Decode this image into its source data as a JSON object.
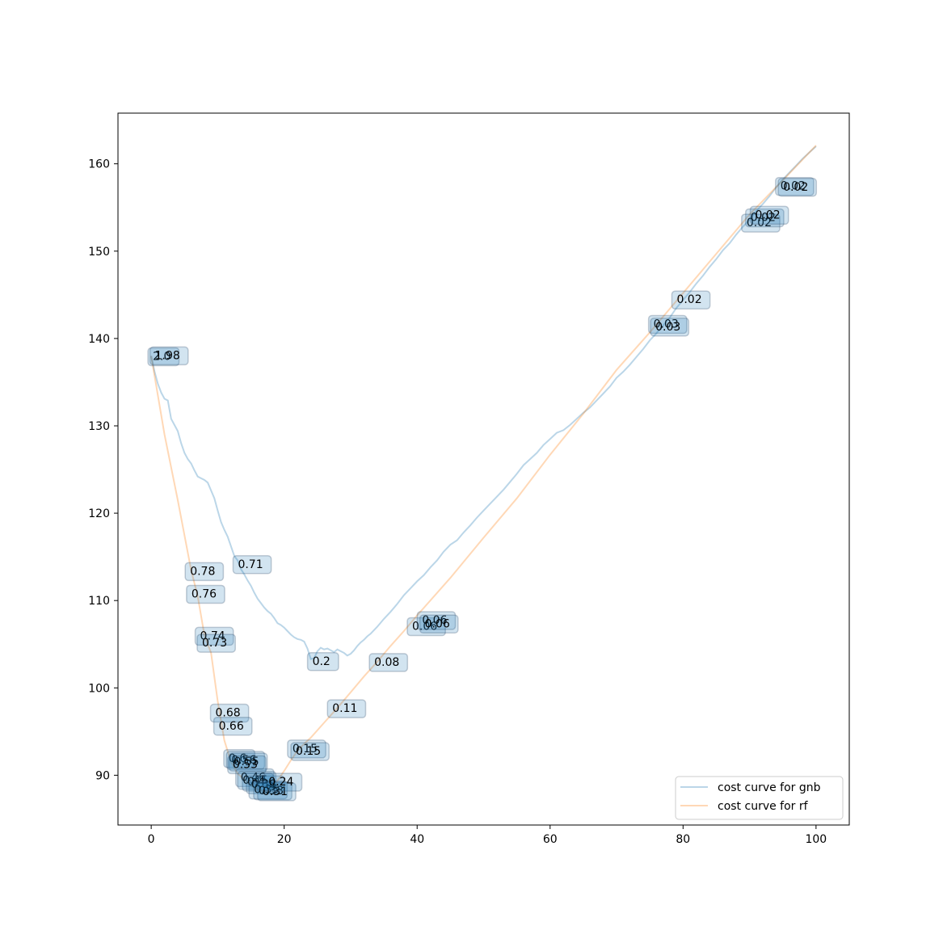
{
  "chart_data": {
    "type": "line",
    "title": "",
    "xlabel": "",
    "ylabel": "",
    "xlim": [
      -5,
      105
    ],
    "ylim": [
      84.3,
      165.8
    ],
    "x_ticks": [
      0,
      20,
      40,
      60,
      80,
      100
    ],
    "y_ticks": [
      90,
      100,
      110,
      120,
      130,
      140,
      150,
      160
    ],
    "grid": false,
    "legend_position": "lower-right",
    "series": [
      {
        "name": "cost curve for gnb",
        "color": "#1f77b4",
        "opacity": 0.3,
        "points": [
          [
            0,
            138.0
          ],
          [
            0.5,
            136.2
          ],
          [
            1,
            134.8
          ],
          [
            1.5,
            133.8
          ],
          [
            2,
            133.1
          ],
          [
            2.5,
            132.9
          ],
          [
            3,
            130.8
          ],
          [
            3.5,
            130.1
          ],
          [
            4,
            129.4
          ],
          [
            4.5,
            128.0
          ],
          [
            5,
            126.9
          ],
          [
            5.5,
            126.2
          ],
          [
            6,
            125.7
          ],
          [
            6.5,
            124.9
          ],
          [
            7,
            124.2
          ],
          [
            7.5,
            124.0
          ],
          [
            8,
            123.8
          ],
          [
            8.5,
            123.5
          ],
          [
            9,
            122.6
          ],
          [
            9.5,
            121.7
          ],
          [
            10,
            120.3
          ],
          [
            10.5,
            119.0
          ],
          [
            11,
            118.1
          ],
          [
            11.5,
            117.3
          ],
          [
            12,
            116.2
          ],
          [
            12.5,
            115.1
          ],
          [
            13,
            114.6
          ],
          [
            13.5,
            113.6
          ],
          [
            14,
            113.0
          ],
          [
            14.5,
            112.3
          ],
          [
            15,
            111.7
          ],
          [
            15.5,
            110.9
          ],
          [
            16,
            110.2
          ],
          [
            16.5,
            109.7
          ],
          [
            17,
            109.2
          ],
          [
            17.5,
            108.8
          ],
          [
            18,
            108.5
          ],
          [
            18.5,
            108.0
          ],
          [
            19,
            107.4
          ],
          [
            19.5,
            107.2
          ],
          [
            20,
            106.9
          ],
          [
            20.5,
            106.5
          ],
          [
            21,
            106.1
          ],
          [
            21.5,
            105.8
          ],
          [
            22,
            105.6
          ],
          [
            22.5,
            105.5
          ],
          [
            23,
            105.3
          ],
          [
            23.5,
            104.5
          ],
          [
            24,
            103.3
          ],
          [
            24.5,
            103.4
          ],
          [
            25,
            104.2
          ],
          [
            25.5,
            104.6
          ],
          [
            26,
            104.4
          ],
          [
            26.5,
            104.5
          ],
          [
            27,
            104.3
          ],
          [
            27.5,
            104.1
          ],
          [
            28,
            104.4
          ],
          [
            28.5,
            104.2
          ],
          [
            29,
            104.0
          ],
          [
            29.5,
            103.7
          ],
          [
            30,
            103.9
          ],
          [
            30.5,
            104.3
          ],
          [
            31,
            104.8
          ],
          [
            31.5,
            105.2
          ],
          [
            32,
            105.5
          ],
          [
            32.5,
            105.9
          ],
          [
            33,
            106.2
          ],
          [
            34,
            107.0
          ],
          [
            35,
            107.9
          ],
          [
            36,
            108.7
          ],
          [
            37,
            109.6
          ],
          [
            38,
            110.6
          ],
          [
            39,
            111.4
          ],
          [
            40,
            112.2
          ],
          [
            41,
            112.9
          ],
          [
            42,
            113.8
          ],
          [
            43,
            114.6
          ],
          [
            44,
            115.6
          ],
          [
            45,
            116.4
          ],
          [
            46,
            116.9
          ],
          [
            47,
            117.8
          ],
          [
            48,
            118.6
          ],
          [
            49,
            119.5
          ],
          [
            50,
            120.3
          ],
          [
            51,
            121.1
          ],
          [
            52,
            121.9
          ],
          [
            53,
            122.7
          ],
          [
            54,
            123.6
          ],
          [
            55,
            124.5
          ],
          [
            56,
            125.5
          ],
          [
            57,
            126.2
          ],
          [
            58,
            126.9
          ],
          [
            59,
            127.8
          ],
          [
            60,
            128.5
          ],
          [
            61,
            129.2
          ],
          [
            62,
            129.5
          ],
          [
            63,
            130.1
          ],
          [
            64,
            130.8
          ],
          [
            65,
            131.5
          ],
          [
            66,
            132.1
          ],
          [
            67,
            132.9
          ],
          [
            68,
            133.7
          ],
          [
            69,
            134.5
          ],
          [
            70,
            135.5
          ],
          [
            71,
            136.2
          ],
          [
            72,
            137.0
          ],
          [
            73,
            137.9
          ],
          [
            74,
            138.8
          ],
          [
            75,
            139.8
          ],
          [
            76,
            140.6
          ],
          [
            77,
            141.5
          ],
          [
            78,
            142.4
          ],
          [
            79,
            143.5
          ],
          [
            80,
            144.4
          ],
          [
            81,
            145.3
          ],
          [
            82,
            146.3
          ],
          [
            83,
            147.2
          ],
          [
            84,
            148.2
          ],
          [
            85,
            149.1
          ],
          [
            86,
            150.1
          ],
          [
            87,
            150.9
          ],
          [
            88,
            151.9
          ],
          [
            89,
            152.8
          ],
          [
            90,
            153.6
          ],
          [
            91,
            154.6
          ],
          [
            92,
            155.4
          ],
          [
            93,
            156.3
          ],
          [
            94,
            157.3
          ],
          [
            95,
            158.2
          ],
          [
            96,
            159.0
          ],
          [
            97,
            159.8
          ],
          [
            98,
            160.6
          ],
          [
            99,
            161.3
          ],
          [
            100,
            162.0
          ]
        ],
        "annotations": [
          {
            "x": 0.0,
            "y": 138.0,
            "label": "2.0"
          },
          {
            "x": 0.3,
            "y": 138.1,
            "label": "1.98"
          },
          {
            "x": 12.8,
            "y": 114.2,
            "label": "0.71"
          },
          {
            "x": 24.0,
            "y": 103.1,
            "label": "0.2"
          },
          {
            "x": 39.0,
            "y": 107.1,
            "label": "0.06"
          },
          {
            "x": 40.5,
            "y": 107.8,
            "label": "0.06"
          },
          {
            "x": 40.9,
            "y": 107.4,
            "label": "0.06"
          },
          {
            "x": 75.3,
            "y": 141.7,
            "label": "0.03"
          },
          {
            "x": 75.6,
            "y": 141.4,
            "label": "0.03"
          },
          {
            "x": 89.3,
            "y": 153.3,
            "label": "0.02"
          },
          {
            "x": 89.9,
            "y": 153.9,
            "label": "0.02"
          },
          {
            "x": 90.6,
            "y": 154.2,
            "label": "0.02"
          },
          {
            "x": 94.4,
            "y": 157.5,
            "label": "0.02"
          },
          {
            "x": 94.8,
            "y": 157.4,
            "label": "0.02"
          }
        ]
      },
      {
        "name": "cost curve for rf",
        "color": "#ff7f0e",
        "opacity": 0.3,
        "points": [
          [
            0,
            138.0
          ],
          [
            2,
            129.0
          ],
          [
            4,
            121.5
          ],
          [
            6,
            113.5
          ],
          [
            7,
            110.5
          ],
          [
            8,
            106.0
          ],
          [
            9,
            104.0
          ],
          [
            10,
            98.5
          ],
          [
            11,
            94.0
          ],
          [
            12,
            91.5
          ],
          [
            13,
            90.2
          ],
          [
            14,
            89.5
          ],
          [
            15,
            88.8
          ],
          [
            16,
            88.4
          ],
          [
            17,
            88.2
          ],
          [
            18,
            88.3
          ],
          [
            19,
            89.4
          ],
          [
            20,
            90.5
          ],
          [
            21,
            91.7
          ],
          [
            22,
            92.8
          ],
          [
            23,
            93.6
          ],
          [
            24,
            94.3
          ],
          [
            26,
            96.0
          ],
          [
            28,
            97.7
          ],
          [
            30,
            99.5
          ],
          [
            32,
            101.3
          ],
          [
            34,
            103.0
          ],
          [
            36,
            104.8
          ],
          [
            38,
            106.5
          ],
          [
            40,
            108.3
          ],
          [
            45,
            112.6
          ],
          [
            50,
            117.2
          ],
          [
            55,
            121.7
          ],
          [
            60,
            126.7
          ],
          [
            65,
            131.4
          ],
          [
            70,
            136.4
          ],
          [
            75,
            140.7
          ],
          [
            80,
            145.2
          ],
          [
            85,
            149.7
          ],
          [
            90,
            154.2
          ],
          [
            95,
            158.1
          ],
          [
            100,
            162.1
          ]
        ],
        "annotations": [
          {
            "x": 5.6,
            "y": 113.4,
            "label": "0.78"
          },
          {
            "x": 5.8,
            "y": 110.8,
            "label": "0.76"
          },
          {
            "x": 7.1,
            "y": 106.0,
            "label": "0.74"
          },
          {
            "x": 7.4,
            "y": 105.2,
            "label": "0.73"
          },
          {
            "x": 9.4,
            "y": 97.2,
            "label": "0.68"
          },
          {
            "x": 9.9,
            "y": 95.7,
            "label": "0.66"
          },
          {
            "x": 11.4,
            "y": 92.0,
            "label": "0.6"
          },
          {
            "x": 11.8,
            "y": 91.8,
            "label": "0.56"
          },
          {
            "x": 12.2,
            "y": 91.6,
            "label": "0.55"
          },
          {
            "x": 12.0,
            "y": 91.3,
            "label": "0.53"
          },
          {
            "x": 13.2,
            "y": 89.8,
            "label": "0.46"
          },
          {
            "x": 13.5,
            "y": 89.5,
            "label": "0.45"
          },
          {
            "x": 14.2,
            "y": 89.3,
            "label": "0.4"
          },
          {
            "x": 14.8,
            "y": 89.0,
            "label": "0.38"
          },
          {
            "x": 15.2,
            "y": 88.4,
            "label": "0.35"
          },
          {
            "x": 15.9,
            "y": 88.3,
            "label": "0.33"
          },
          {
            "x": 16.5,
            "y": 88.2,
            "label": "0.31"
          },
          {
            "x": 17.4,
            "y": 89.3,
            "label": "0.24"
          },
          {
            "x": 21.0,
            "y": 93.1,
            "label": "0.15"
          },
          {
            "x": 21.5,
            "y": 92.8,
            "label": "0.15"
          },
          {
            "x": 27.0,
            "y": 97.7,
            "label": "0.11"
          },
          {
            "x": 33.3,
            "y": 103.0,
            "label": "0.08"
          },
          {
            "x": 78.8,
            "y": 144.5,
            "label": "0.02"
          }
        ]
      }
    ]
  }
}
